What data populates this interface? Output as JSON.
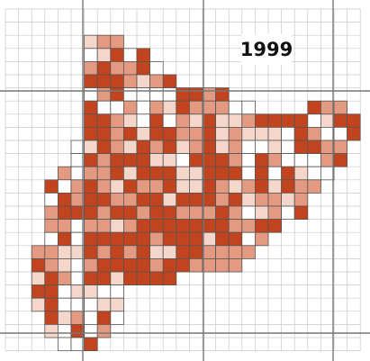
{
  "map": {
    "title": "1999"
  }
}
